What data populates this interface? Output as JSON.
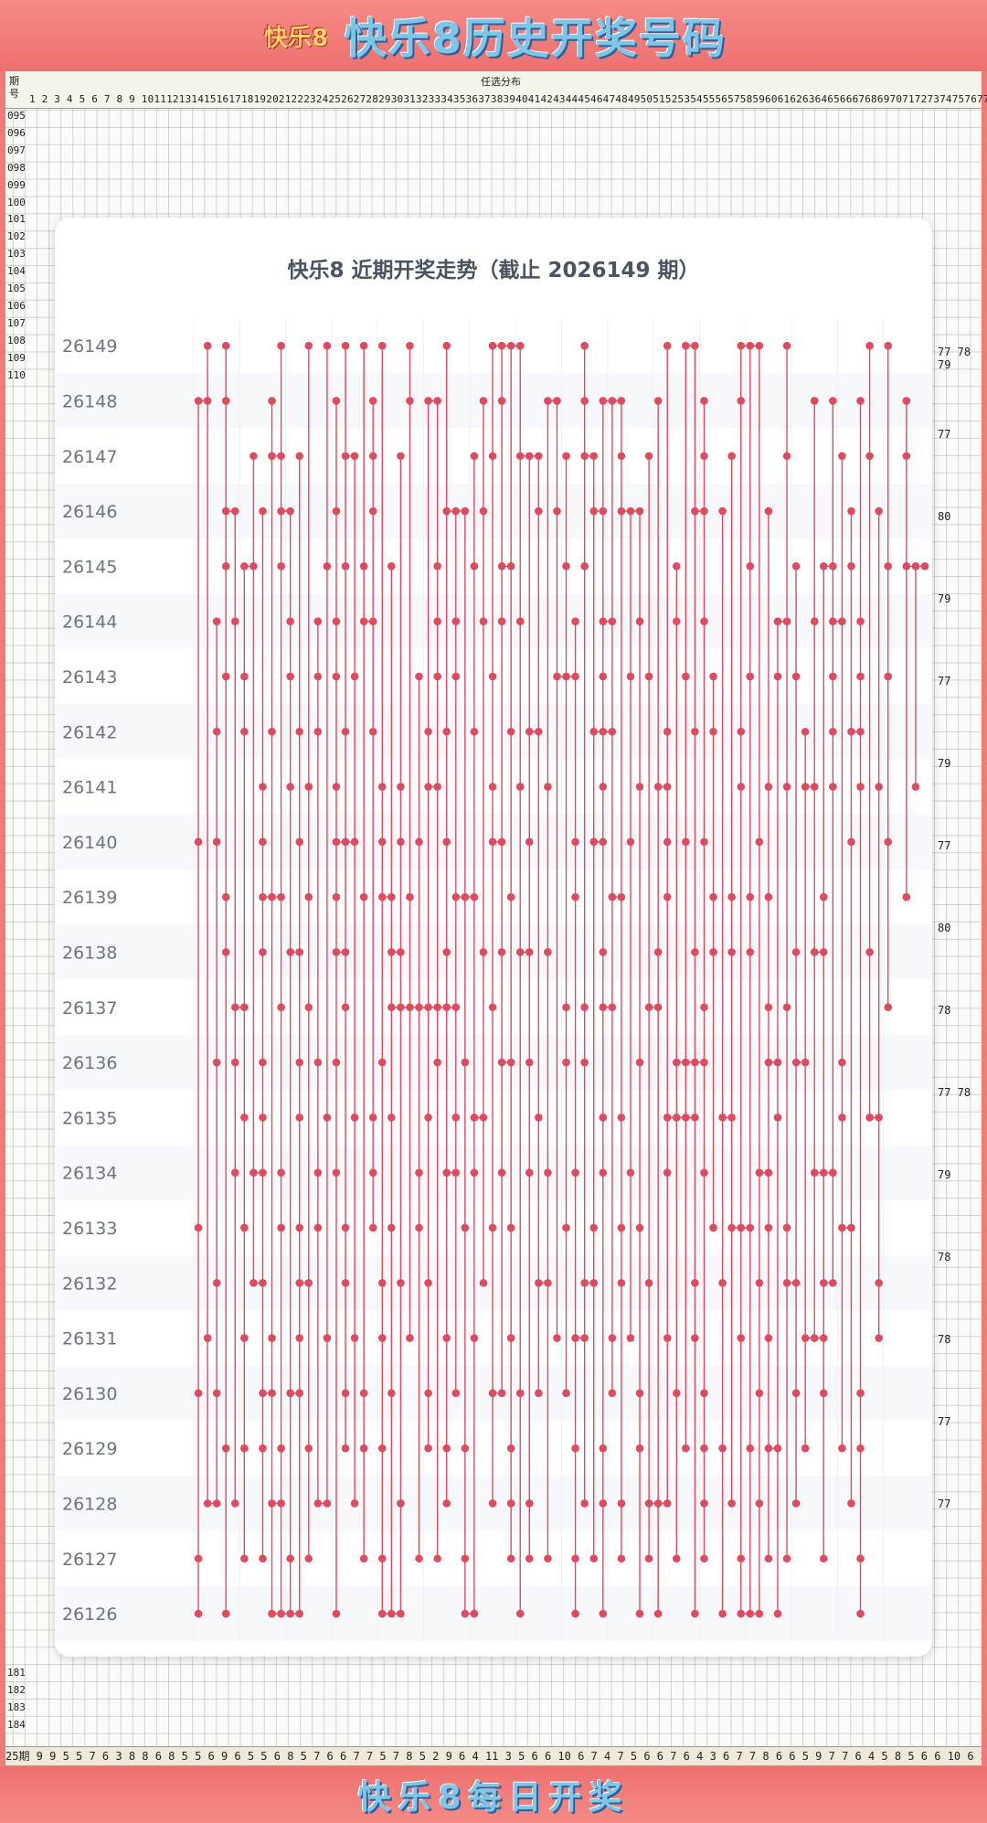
{
  "header": {
    "logo_text": "快乐8",
    "title": "快乐8历史开奖号码"
  },
  "background_grid": {
    "label_col1": "期",
    "label_col2": "号",
    "caption": "任选分布",
    "column_numbers": "1 2 3 4 5 6 7 8 9 10111213141516171819202122232425262728293031323334353637383940414243444546474849505152535455565758596061626364656667686970717273747576777879 80",
    "row_labels_top": [
      "095",
      "096",
      "097",
      "098",
      "099",
      "100",
      "101",
      "102",
      "103",
      "104",
      "105",
      "106",
      "107",
      "108",
      "109",
      "110"
    ],
    "row_labels_bottom": [
      "181",
      "182",
      "183",
      "184"
    ],
    "bottom_counts": "25期 9 9 5 5 7 6 3 8 8 6 8 5 5 6 9 6 5 5 6 8 5 7 6 6 7 7 5 7 8 5 2 9 6 4 11 3 5 6 6 10 6 7 4 7 5 6 6 7 6 4 3 6 7 7 8 6 6 5 9 7 7 6 4 5 8 5 6 6 10 6 2 10 7 4 5 7",
    "right_values": [
      "77 78 79",
      "77",
      "80",
      "79",
      "77",
      "79",
      "77",
      "80",
      "78",
      "77 78",
      "79",
      "78",
      "78",
      "77",
      "77"
    ]
  },
  "footer": {
    "title": "快乐8每日开奖"
  },
  "chart_data": {
    "type": "line",
    "title": "快乐8 近期开奖走势（截止 2026149 期）",
    "periods": [
      "26149",
      "26148",
      "26147",
      "26146",
      "26145",
      "26144",
      "26143",
      "26142",
      "26141",
      "26140",
      "26139",
      "26138",
      "26137",
      "26136",
      "26135",
      "26134",
      "26133",
      "26132",
      "26131",
      "26130",
      "26129",
      "26128",
      "26127",
      "26126"
    ],
    "number_range": [
      1,
      80
    ],
    "grid": true,
    "line_color": "#e04a5f",
    "marker_color": "#e04a5f",
    "draws": [
      [
        2,
        4,
        10,
        13,
        15,
        17,
        19,
        21,
        24,
        28,
        33,
        34,
        35,
        36,
        43,
        52,
        54,
        55,
        60,
        61,
        62,
        65,
        74,
        76
      ],
      [
        1,
        2,
        4,
        9,
        16,
        20,
        24,
        26,
        27,
        32,
        34,
        39,
        40,
        43,
        45,
        46,
        47,
        51,
        56,
        60,
        68,
        70,
        73,
        78
      ],
      [
        7,
        9,
        10,
        12,
        17,
        18,
        20,
        23,
        31,
        33,
        36,
        37,
        38,
        41,
        43,
        44,
        47,
        50,
        56,
        59,
        65,
        71,
        74,
        78
      ],
      [
        4,
        5,
        8,
        10,
        11,
        16,
        20,
        28,
        29,
        30,
        32,
        38,
        40,
        44,
        45,
        47,
        48,
        49,
        55,
        56,
        58,
        63,
        72,
        75
      ],
      [
        4,
        6,
        7,
        10,
        15,
        17,
        19,
        22,
        27,
        31,
        34,
        35,
        41,
        43,
        53,
        61,
        66,
        69,
        70,
        72,
        76,
        78,
        79,
        80
      ],
      [
        3,
        5,
        11,
        14,
        16,
        19,
        20,
        27,
        29,
        32,
        34,
        36,
        42,
        45,
        46,
        49,
        53,
        56,
        64,
        65,
        68,
        70,
        71,
        73
      ],
      [
        4,
        6,
        11,
        14,
        16,
        18,
        25,
        27,
        29,
        33,
        40,
        41,
        42,
        45,
        48,
        50,
        54,
        57,
        61,
        64,
        66,
        70,
        73,
        76
      ],
      [
        3,
        6,
        9,
        12,
        14,
        17,
        20,
        26,
        28,
        31,
        35,
        37,
        38,
        44,
        45,
        46,
        52,
        55,
        57,
        60,
        67,
        70,
        72,
        73
      ],
      [
        8,
        11,
        13,
        16,
        21,
        23,
        26,
        27,
        33,
        36,
        39,
        45,
        49,
        51,
        52,
        60,
        63,
        65,
        67,
        68,
        70,
        73,
        75,
        79
      ],
      [
        1,
        3,
        8,
        12,
        16,
        17,
        18,
        21,
        23,
        25,
        28,
        33,
        34,
        37,
        42,
        44,
        45,
        48,
        52,
        54,
        56,
        62,
        72,
        76
      ],
      [
        4,
        8,
        9,
        10,
        13,
        16,
        19,
        21,
        22,
        24,
        29,
        30,
        31,
        35,
        42,
        46,
        47,
        52,
        57,
        59,
        61,
        63,
        69,
        78
      ],
      [
        4,
        8,
        11,
        12,
        16,
        17,
        22,
        23,
        28,
        32,
        34,
        36,
        37,
        39,
        45,
        51,
        55,
        57,
        59,
        61,
        66,
        68,
        69,
        74
      ],
      [
        5,
        6,
        10,
        13,
        17,
        22,
        23,
        24,
        25,
        26,
        27,
        28,
        29,
        33,
        41,
        43,
        45,
        46,
        50,
        51,
        56,
        63,
        65,
        76
      ],
      [
        3,
        5,
        8,
        12,
        14,
        16,
        21,
        27,
        30,
        34,
        35,
        37,
        41,
        43,
        49,
        53,
        54,
        55,
        56,
        63,
        64,
        66,
        67,
        71
      ],
      [
        6,
        8,
        12,
        15,
        18,
        20,
        22,
        26,
        29,
        31,
        32,
        38,
        45,
        47,
        52,
        53,
        54,
        55,
        58,
        59,
        64,
        71,
        74,
        75
      ],
      [
        5,
        7,
        8,
        10,
        14,
        16,
        20,
        25,
        28,
        29,
        31,
        34,
        37,
        39,
        42,
        45,
        48,
        52,
        56,
        62,
        63,
        68,
        69,
        70
      ],
      [
        1,
        6,
        10,
        12,
        14,
        17,
        20,
        22,
        25,
        30,
        33,
        35,
        41,
        44,
        47,
        49,
        57,
        59,
        60,
        61,
        63,
        65,
        71,
        72
      ],
      [
        3,
        7,
        8,
        12,
        13,
        17,
        21,
        23,
        26,
        32,
        38,
        39,
        43,
        44,
        47,
        50,
        55,
        58,
        62,
        65,
        66,
        69,
        70,
        75
      ],
      [
        2,
        6,
        9,
        12,
        15,
        18,
        21,
        24,
        28,
        31,
        35,
        40,
        42,
        43,
        46,
        48,
        52,
        55,
        60,
        63,
        67,
        68,
        69,
        75
      ],
      [
        1,
        3,
        8,
        9,
        11,
        12,
        17,
        19,
        22,
        26,
        29,
        33,
        34,
        36,
        38,
        41,
        46,
        49,
        53,
        56,
        62,
        66,
        69,
        73
      ],
      [
        4,
        6,
        8,
        10,
        13,
        17,
        19,
        21,
        26,
        28,
        30,
        35,
        42,
        45,
        49,
        54,
        56,
        58,
        61,
        63,
        64,
        67,
        71,
        73
      ],
      [
        2,
        3,
        5,
        9,
        10,
        14,
        15,
        18,
        23,
        28,
        33,
        35,
        37,
        43,
        45,
        47,
        50,
        51,
        52,
        56,
        59,
        62,
        66,
        72
      ],
      [
        1,
        6,
        8,
        11,
        13,
        19,
        21,
        25,
        27,
        30,
        35,
        37,
        39,
        42,
        44,
        47,
        50,
        53,
        56,
        60,
        63,
        65,
        69,
        73
      ],
      [
        1,
        4,
        9,
        10,
        11,
        12,
        16,
        21,
        22,
        23,
        30,
        31,
        36,
        42,
        45,
        49,
        51,
        55,
        58,
        60,
        61,
        62,
        64,
        73
      ]
    ]
  }
}
